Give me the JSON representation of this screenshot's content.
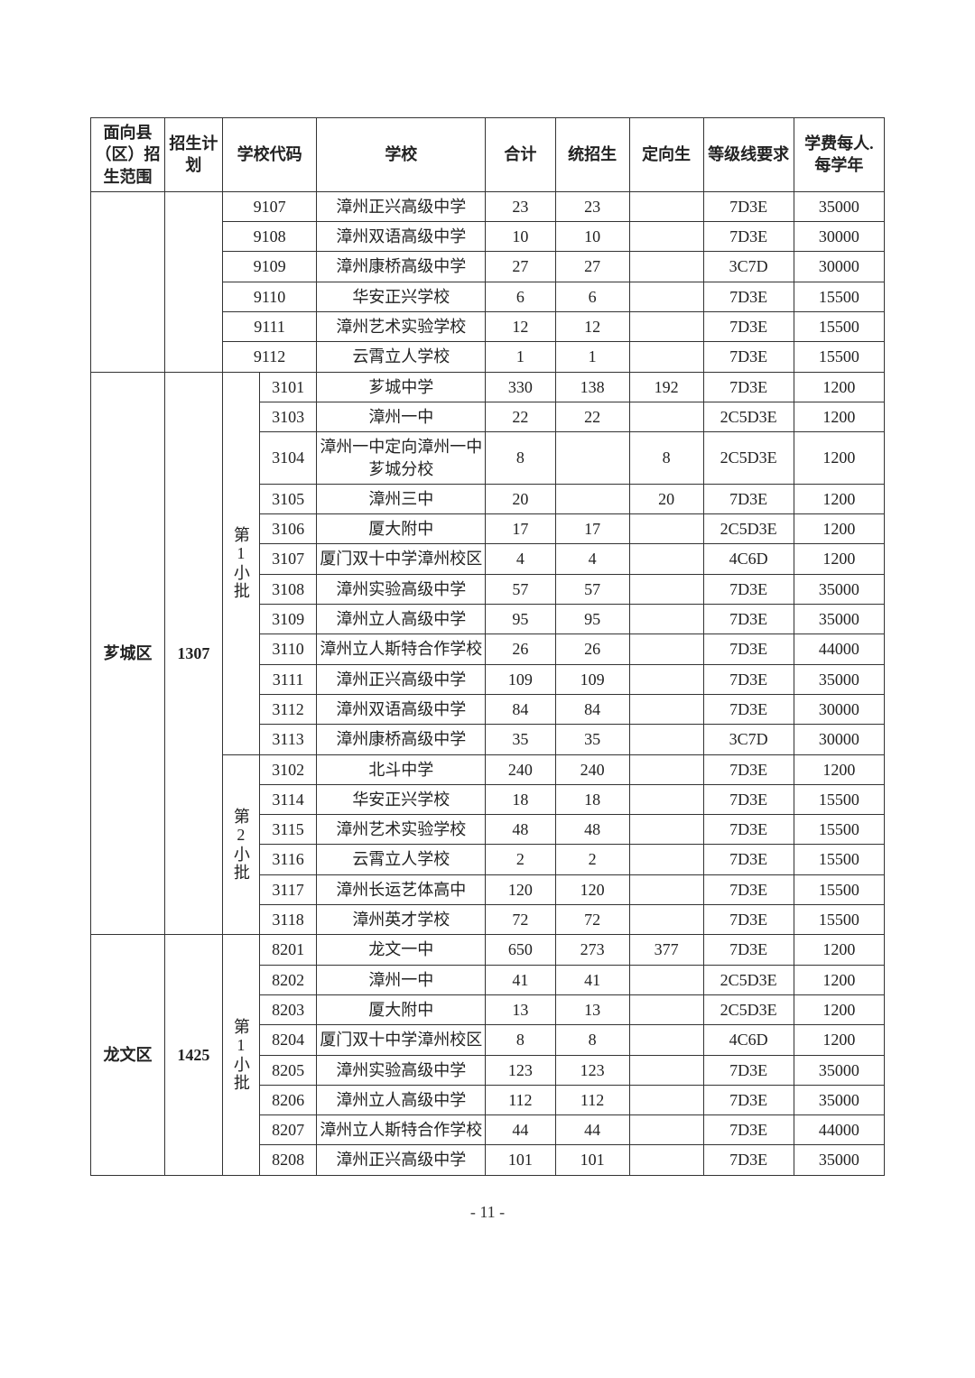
{
  "page_number": "- 11 -",
  "columns": {
    "range": "面向县（区）招生范围",
    "plan": "招生计划",
    "code": "学校代码",
    "school": "学校",
    "total": "合计",
    "general": "统招生",
    "targeted": "定向生",
    "grade": "等级线要求",
    "fee": "学费每人. 每学年"
  },
  "sections": [
    {
      "range": "",
      "plan": "",
      "batch": "",
      "batch_label": "",
      "rows": [
        {
          "code": "9107",
          "school": "漳州正兴高级中学",
          "total": "23",
          "general": "23",
          "targeted": "",
          "grade": "7D3E",
          "fee": "35000"
        },
        {
          "code": "9108",
          "school": "漳州双语高级中学",
          "total": "10",
          "general": "10",
          "targeted": "",
          "grade": "7D3E",
          "fee": "30000"
        },
        {
          "code": "9109",
          "school": "漳州康桥高级中学",
          "total": "27",
          "general": "27",
          "targeted": "",
          "grade": "3C7D",
          "fee": "30000"
        },
        {
          "code": "9110",
          "school": "华安正兴学校",
          "total": "6",
          "general": "6",
          "targeted": "",
          "grade": "7D3E",
          "fee": "15500"
        },
        {
          "code": "9111",
          "school": "漳州艺术实验学校",
          "total": "12",
          "general": "12",
          "targeted": "",
          "grade": "7D3E",
          "fee": "15500"
        },
        {
          "code": "9112",
          "school": "云霄立人学校",
          "total": "1",
          "general": "1",
          "targeted": "",
          "grade": "7D3E",
          "fee": "15500"
        }
      ]
    },
    {
      "range": "芗城区",
      "plan": "1307",
      "batches": [
        {
          "label": "第1小批",
          "rows": [
            {
              "code": "3101",
              "school": "芗城中学",
              "total": "330",
              "general": "138",
              "targeted": "192",
              "grade": "7D3E",
              "fee": "1200"
            },
            {
              "code": "3103",
              "school": "漳州一中",
              "total": "22",
              "general": "22",
              "targeted": "",
              "grade": "2C5D3E",
              "fee": "1200"
            },
            {
              "code": "3104",
              "school": "漳州一中定向漳州一中芗城分校",
              "total": "8",
              "general": "",
              "targeted": "8",
              "grade": "2C5D3E",
              "fee": "1200"
            },
            {
              "code": "3105",
              "school": "漳州三中",
              "total": "20",
              "general": "",
              "targeted": "20",
              "grade": "7D3E",
              "fee": "1200"
            },
            {
              "code": "3106",
              "school": "厦大附中",
              "total": "17",
              "general": "17",
              "targeted": "",
              "grade": "2C5D3E",
              "fee": "1200"
            },
            {
              "code": "3107",
              "school": "厦门双十中学漳州校区",
              "total": "4",
              "general": "4",
              "targeted": "",
              "grade": "4C6D",
              "fee": "1200"
            },
            {
              "code": "3108",
              "school": "漳州实验高级中学",
              "total": "57",
              "general": "57",
              "targeted": "",
              "grade": "7D3E",
              "fee": "35000"
            },
            {
              "code": "3109",
              "school": "漳州立人高级中学",
              "total": "95",
              "general": "95",
              "targeted": "",
              "grade": "7D3E",
              "fee": "35000"
            },
            {
              "code": "3110",
              "school": "漳州立人斯特合作学校",
              "total": "26",
              "general": "26",
              "targeted": "",
              "grade": "7D3E",
              "fee": "44000"
            },
            {
              "code": "3111",
              "school": "漳州正兴高级中学",
              "total": "109",
              "general": "109",
              "targeted": "",
              "grade": "7D3E",
              "fee": "35000"
            },
            {
              "code": "3112",
              "school": "漳州双语高级中学",
              "total": "84",
              "general": "84",
              "targeted": "",
              "grade": "7D3E",
              "fee": "30000"
            },
            {
              "code": "3113",
              "school": "漳州康桥高级中学",
              "total": "35",
              "general": "35",
              "targeted": "",
              "grade": "3C7D",
              "fee": "30000"
            }
          ]
        },
        {
          "label": "第2小批",
          "rows": [
            {
              "code": "3102",
              "school": "北斗中学",
              "total": "240",
              "general": "240",
              "targeted": "",
              "grade": "7D3E",
              "fee": "1200"
            },
            {
              "code": "3114",
              "school": "华安正兴学校",
              "total": "18",
              "general": "18",
              "targeted": "",
              "grade": "7D3E",
              "fee": "15500"
            },
            {
              "code": "3115",
              "school": "漳州艺术实验学校",
              "total": "48",
              "general": "48",
              "targeted": "",
              "grade": "7D3E",
              "fee": "15500"
            },
            {
              "code": "3116",
              "school": "云霄立人学校",
              "total": "2",
              "general": "2",
              "targeted": "",
              "grade": "7D3E",
              "fee": "15500"
            },
            {
              "code": "3117",
              "school": "漳州长运艺体高中",
              "total": "120",
              "general": "120",
              "targeted": "",
              "grade": "7D3E",
              "fee": "15500"
            },
            {
              "code": "3118",
              "school": "漳州英才学校",
              "total": "72",
              "general": "72",
              "targeted": "",
              "grade": "7D3E",
              "fee": "15500"
            }
          ]
        }
      ]
    },
    {
      "range": "龙文区",
      "plan": "1425",
      "batches": [
        {
          "label": "第1小批",
          "rows": [
            {
              "code": "8201",
              "school": "龙文一中",
              "total": "650",
              "general": "273",
              "targeted": "377",
              "grade": "7D3E",
              "fee": "1200"
            },
            {
              "code": "8202",
              "school": "漳州一中",
              "total": "41",
              "general": "41",
              "targeted": "",
              "grade": "2C5D3E",
              "fee": "1200"
            },
            {
              "code": "8203",
              "school": "厦大附中",
              "total": "13",
              "general": "13",
              "targeted": "",
              "grade": "2C5D3E",
              "fee": "1200"
            },
            {
              "code": "8204",
              "school": "厦门双十中学漳州校区",
              "total": "8",
              "general": "8",
              "targeted": "",
              "grade": "4C6D",
              "fee": "1200"
            },
            {
              "code": "8205",
              "school": "漳州实验高级中学",
              "total": "123",
              "general": "123",
              "targeted": "",
              "grade": "7D3E",
              "fee": "35000"
            },
            {
              "code": "8206",
              "school": "漳州立人高级中学",
              "total": "112",
              "general": "112",
              "targeted": "",
              "grade": "7D3E",
              "fee": "35000"
            },
            {
              "code": "8207",
              "school": "漳州立人斯特合作学校",
              "total": "44",
              "general": "44",
              "targeted": "",
              "grade": "7D3E",
              "fee": "44000"
            },
            {
              "code": "8208",
              "school": "漳州正兴高级中学",
              "total": "101",
              "general": "101",
              "targeted": "",
              "grade": "7D3E",
              "fee": "35000"
            }
          ]
        }
      ]
    }
  ]
}
